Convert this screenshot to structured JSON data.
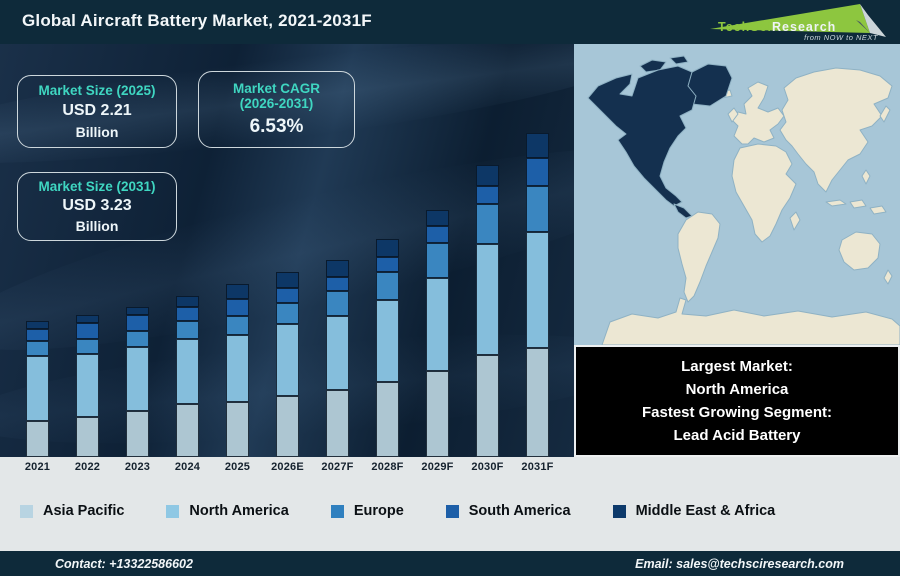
{
  "title": "Global Aircraft Battery Market, 2021-2031F",
  "logo": {
    "brand_primary": "TechSci",
    "brand_secondary": "Research",
    "tagline": "from NOW to NEXT"
  },
  "stats": {
    "box1": {
      "title": "Market Size (2025)",
      "value": "USD 2.21",
      "unit": "Billion"
    },
    "box2": {
      "title_line1": "Market CAGR",
      "title_line2": "(2026-2031)",
      "value": "6.53%"
    },
    "box3": {
      "title": "Market Size (2031)",
      "value": "USD 3.23",
      "unit": "Billion"
    }
  },
  "chart_data": {
    "type": "bar",
    "stacked": true,
    "title": "Global Aircraft Battery Market, 2021-2031F",
    "categories": [
      "2021",
      "2022",
      "2023",
      "2024",
      "2025",
      "2026E",
      "2027F",
      "2028F",
      "2029F",
      "2030F",
      "2031F"
    ],
    "series": [
      {
        "name": "Asia Pacific",
        "color": "#adc6d2",
        "swatch": "#b8d4e2",
        "values": [
          36,
          40,
          46,
          53,
          55,
          61,
          67,
          75,
          86,
          102,
          109
        ]
      },
      {
        "name": "North America",
        "color": "#85bedc",
        "swatch": "#8fc8e4",
        "values": [
          65,
          63,
          64,
          65,
          67,
          72,
          74,
          82,
          93,
          111,
          116
        ]
      },
      {
        "name": "Europe",
        "color": "#3a86c0",
        "swatch": "#2f80bf",
        "values": [
          15,
          15,
          16,
          18,
          19,
          21,
          25,
          28,
          35,
          40,
          46
        ]
      },
      {
        "name": "South America",
        "color": "#1d5fa8",
        "swatch": "#1d5fa8",
        "values": [
          12,
          16,
          16,
          14,
          17,
          15,
          14,
          15,
          17,
          18,
          28
        ]
      },
      {
        "name": "Middle East & Africa",
        "color": "#0d3766",
        "swatch": "#0d3a6b",
        "values": [
          8,
          8,
          8,
          11,
          15,
          16,
          17,
          18,
          16,
          21,
          25
        ]
      }
    ],
    "value_unit": "relative bar height in px (no value axis shown in figure)",
    "known_totals": {
      "2025": "USD 2.21 Billion",
      "2031": "USD 3.23 Billion"
    },
    "xlabel": "",
    "ylabel": "",
    "grid": false,
    "legend_position": "bottom"
  },
  "map_callout": {
    "line1": "Largest Market:",
    "line2": "North America",
    "line3": "Fastest Growing Segment:",
    "line4": "Lead Acid Battery"
  },
  "footer": {
    "contact": "Contact: +13322586602",
    "email": "Email: sales@techsciresearch.com"
  },
  "colors": {
    "title_bar_bg": "#0e2a3a",
    "chart_bg": "#122339",
    "accent_teal": "#3fd6c1",
    "strip_bg": "#e3e7e8",
    "callout_bg": "#000000",
    "map_ocean": "#a7c6d7",
    "map_land": "#ece7d3",
    "map_highlight": "#14304f",
    "logo_green": "#8dc63f"
  }
}
